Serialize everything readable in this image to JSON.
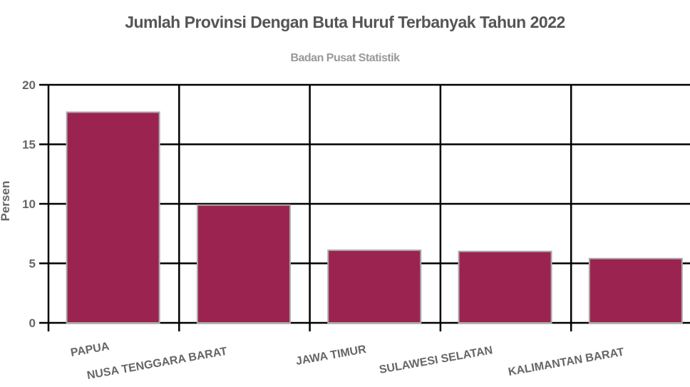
{
  "chart_data": {
    "type": "bar",
    "title": "Jumlah Provinsi Dengan Buta Huruf Terbanyak Tahun 2022",
    "subtitle": "Badan Pusat Statistik",
    "xlabel": "",
    "ylabel": "Persen",
    "categories": [
      "PAPUA",
      "NUSA TENGGARA BARAT",
      "JAWA TIMUR",
      "SULAWESI SELATAN",
      "KALIMANTAN BARAT"
    ],
    "values": [
      17.7,
      9.9,
      6.1,
      6.0,
      5.4
    ],
    "ylim": [
      0,
      20
    ],
    "yticks": [
      0,
      5,
      10,
      15,
      20
    ],
    "grid": true,
    "legend": null,
    "bar_color": "#9b2350",
    "bar_border_color": "#aaaaaa"
  }
}
